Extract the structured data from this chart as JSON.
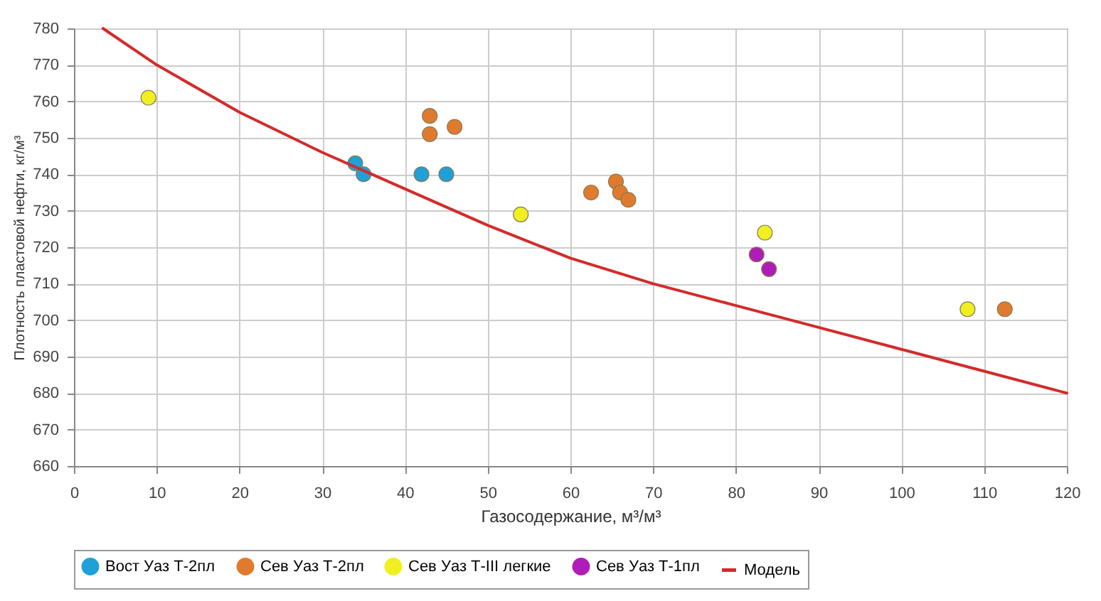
{
  "chart_data": {
    "type": "scatter",
    "xlabel": "Газосодержание, м³/м³",
    "ylabel": "Плотность пластовой нефти, кг/м³",
    "xlim": [
      0,
      120
    ],
    "xticks": [
      0,
      10,
      20,
      30,
      40,
      50,
      60,
      70,
      80,
      90,
      100,
      110,
      120
    ],
    "ylim": [
      660,
      780
    ],
    "yticks": [
      660,
      670,
      680,
      690,
      700,
      710,
      720,
      730,
      740,
      750,
      760,
      770,
      780
    ],
    "grid": true,
    "legend": "bottom",
    "marker": "circle",
    "series": [
      {
        "name": "Вост Уаз Т-2пл",
        "color": "#1fa0d8",
        "x": [
          34,
          35,
          42,
          45
        ],
        "values": [
          743,
          740,
          740,
          740
        ]
      },
      {
        "name": "Сев Уаз Т-2пл",
        "color": "#e07b2e",
        "x": [
          43,
          43,
          46,
          62.5,
          65.5,
          66,
          67,
          112.5
        ],
        "values": [
          756,
          751,
          753,
          735,
          738,
          735,
          733,
          703
        ]
      },
      {
        "name": "Сев Уаз Т-III легкие",
        "color": "#f0f020",
        "x": [
          9,
          54,
          83.5,
          108
        ],
        "values": [
          761,
          729,
          724,
          703
        ]
      },
      {
        "name": "Сев Уаз Т-1пл",
        "color": "#b01cb8",
        "x": [
          82.5,
          84
        ],
        "values": [
          718,
          714
        ]
      },
      {
        "name": "Модель",
        "type": "line",
        "color": "#d42a2a",
        "marker": "none",
        "line_style": "solid",
        "x": [
          3.5,
          10,
          20,
          30,
          40,
          50,
          60,
          70,
          80,
          90,
          100,
          110,
          120
        ],
        "values": [
          780,
          770,
          757,
          746,
          736,
          726,
          717,
          710,
          704,
          698,
          692,
          686,
          680
        ]
      }
    ]
  }
}
